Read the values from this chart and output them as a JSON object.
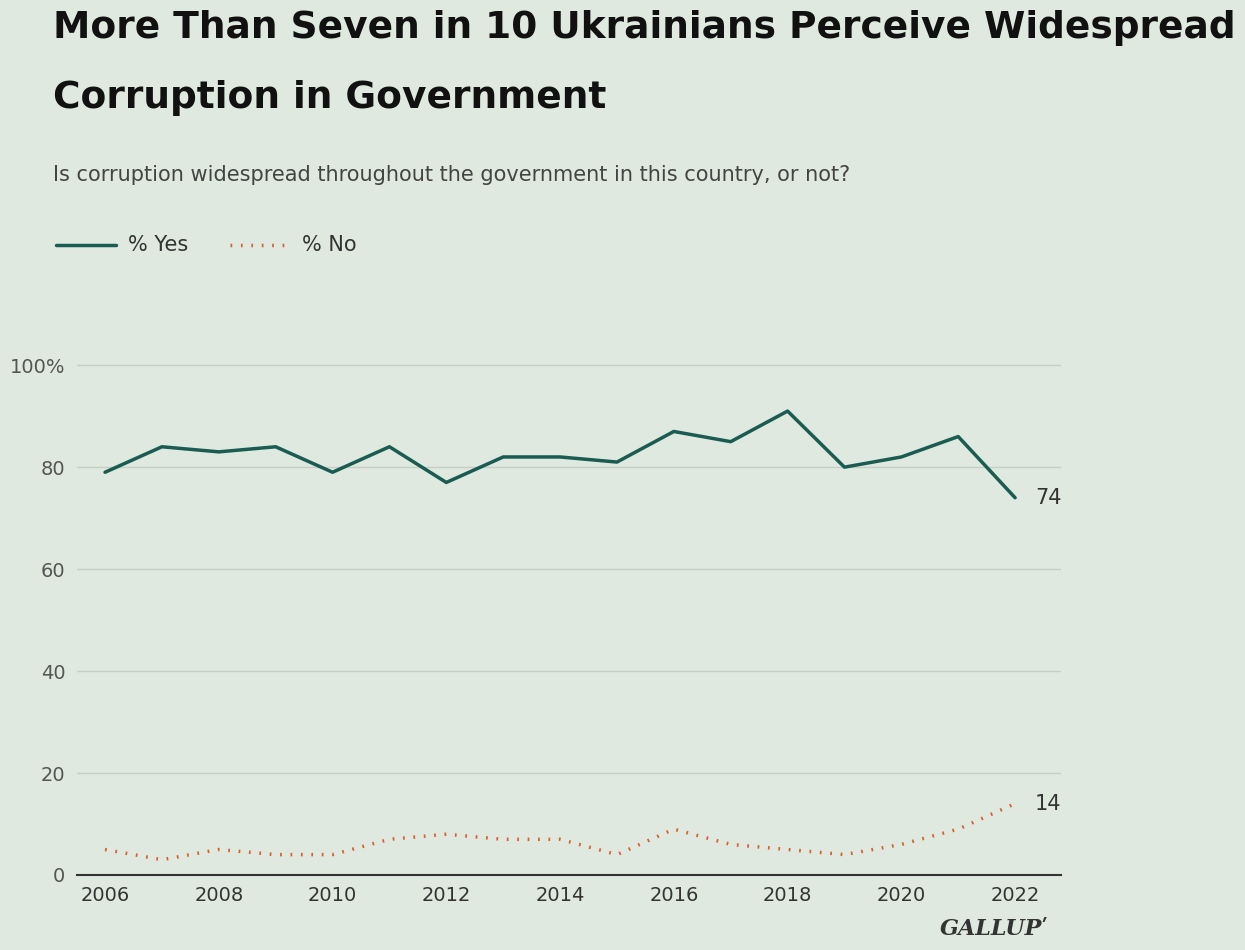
{
  "title_line1": "More Than Seven in 10 Ukrainians Perceive Widespread",
  "title_line2": "Corruption in Government",
  "subtitle": "Is corruption widespread throughout the government in this country, or not?",
  "background_color": "#dfe9df",
  "yes_color": "#1a5c52",
  "no_color": "#d95f2b",
  "years": [
    2006,
    2007,
    2008,
    2009,
    2010,
    2011,
    2012,
    2013,
    2014,
    2015,
    2016,
    2017,
    2018,
    2019,
    2020,
    2021,
    2022
  ],
  "yes_values": [
    79,
    84,
    83,
    84,
    79,
    84,
    77,
    82,
    82,
    81,
    87,
    85,
    91,
    80,
    82,
    86,
    74
  ],
  "no_values": [
    5,
    3,
    5,
    4,
    4,
    7,
    8,
    7,
    7,
    4,
    9,
    6,
    5,
    4,
    6,
    9,
    14
  ],
  "ylim": [
    0,
    102
  ],
  "yticks": [
    0,
    20,
    40,
    60,
    80,
    100
  ],
  "ytick_labels": [
    "0",
    "20",
    "40",
    "60",
    "80",
    "100%"
  ],
  "xticks": [
    2006,
    2008,
    2010,
    2012,
    2014,
    2016,
    2018,
    2020,
    2022
  ],
  "grid_color": "#c5cfc5",
  "legend_yes": "% Yes",
  "legend_no": "% No",
  "label_74": "74",
  "label_14": "14",
  "gallup_text": "GALLUPʹ",
  "title_fontsize": 27,
  "subtitle_fontsize": 15,
  "axis_fontsize": 14,
  "label_fontsize": 15,
  "legend_fontsize": 15
}
